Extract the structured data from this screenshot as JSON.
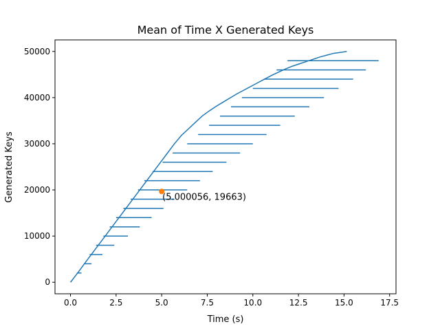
{
  "chart_data": {
    "type": "line",
    "title": "Mean of Time X Generated Keys",
    "xlabel": "Time (s)",
    "ylabel": "Generated Keys",
    "xlim": [
      -0.85,
      17.85
    ],
    "ylim": [
      -2500,
      52500
    ],
    "xticks": [
      0.0,
      2.5,
      5.0,
      7.5,
      10.0,
      12.5,
      15.0,
      17.5
    ],
    "xtick_labels": [
      "0.0",
      "2.5",
      "5.0",
      "7.5",
      "10.0",
      "12.5",
      "15.0",
      "17.5"
    ],
    "yticks": [
      0,
      10000,
      20000,
      30000,
      40000,
      50000
    ],
    "ytick_labels": [
      "0",
      "10000",
      "20000",
      "30000",
      "40000",
      "50000"
    ],
    "grid": false,
    "colors": {
      "line": "#1f77b4",
      "errorbar": "#1f77b4",
      "marker": "#ff7f0e"
    },
    "series": [
      {
        "x": [
          0.0,
          0.39,
          0.76,
          1.14,
          1.52,
          1.9,
          2.28,
          2.66,
          3.04,
          3.42,
          3.8,
          4.18,
          4.56,
          4.94,
          5.32,
          5.7,
          6.08,
          6.46,
          6.84,
          7.22,
          7.6,
          7.98,
          8.36,
          8.74,
          9.12,
          9.5,
          9.88,
          10.26,
          10.64,
          11.02,
          11.4,
          11.78,
          12.16,
          12.54,
          12.92,
          13.3,
          13.68,
          14.06,
          14.44,
          14.82,
          15.15
        ],
        "y": [
          0,
          2000,
          4000,
          6000,
          8000,
          10000,
          12000,
          14000,
          16000,
          18000,
          20000,
          22000,
          24000,
          26000,
          28000,
          30000,
          31800,
          33200,
          34600,
          36000,
          37100,
          38100,
          39000,
          39900,
          40800,
          41600,
          42400,
          43200,
          44000,
          44800,
          45500,
          46200,
          46800,
          47300,
          47800,
          48300,
          48800,
          49200,
          49600,
          49800,
          50000
        ]
      }
    ],
    "errorbars": [
      {
        "y": 2000,
        "xmin": 0.35,
        "xmax": 0.6
      },
      {
        "y": 4000,
        "xmin": 0.75,
        "xmax": 1.15
      },
      {
        "y": 6000,
        "xmin": 1.05,
        "xmax": 1.75
      },
      {
        "y": 8000,
        "xmin": 1.4,
        "xmax": 2.4
      },
      {
        "y": 10000,
        "xmin": 1.8,
        "xmax": 3.15
      },
      {
        "y": 12000,
        "xmin": 2.15,
        "xmax": 3.8
      },
      {
        "y": 14000,
        "xmin": 2.5,
        "xmax": 4.45
      },
      {
        "y": 16000,
        "xmin": 2.9,
        "xmax": 5.1
      },
      {
        "y": 18000,
        "xmin": 3.3,
        "xmax": 5.7
      },
      {
        "y": 20000,
        "xmin": 3.7,
        "xmax": 6.4
      },
      {
        "y": 22000,
        "xmin": 4.05,
        "xmax": 7.1
      },
      {
        "y": 24000,
        "xmin": 4.5,
        "xmax": 7.8
      },
      {
        "y": 26000,
        "xmin": 5.05,
        "xmax": 8.55
      },
      {
        "y": 28000,
        "xmin": 5.6,
        "xmax": 9.3
      },
      {
        "y": 30000,
        "xmin": 6.4,
        "xmax": 10.0
      },
      {
        "y": 32000,
        "xmin": 7.0,
        "xmax": 10.75
      },
      {
        "y": 34000,
        "xmin": 7.6,
        "xmax": 11.5
      },
      {
        "y": 36000,
        "xmin": 8.2,
        "xmax": 12.3
      },
      {
        "y": 38000,
        "xmin": 8.8,
        "xmax": 13.1
      },
      {
        "y": 40000,
        "xmin": 9.4,
        "xmax": 13.9
      },
      {
        "y": 42000,
        "xmin": 10.0,
        "xmax": 14.7
      },
      {
        "y": 44000,
        "xmin": 10.6,
        "xmax": 15.5
      },
      {
        "y": 46000,
        "xmin": 11.3,
        "xmax": 16.2
      },
      {
        "y": 48000,
        "xmin": 11.9,
        "xmax": 16.9
      }
    ],
    "highlight": {
      "x": 5.000056,
      "y": 19663,
      "label": "(5.000056, 19663)"
    }
  }
}
